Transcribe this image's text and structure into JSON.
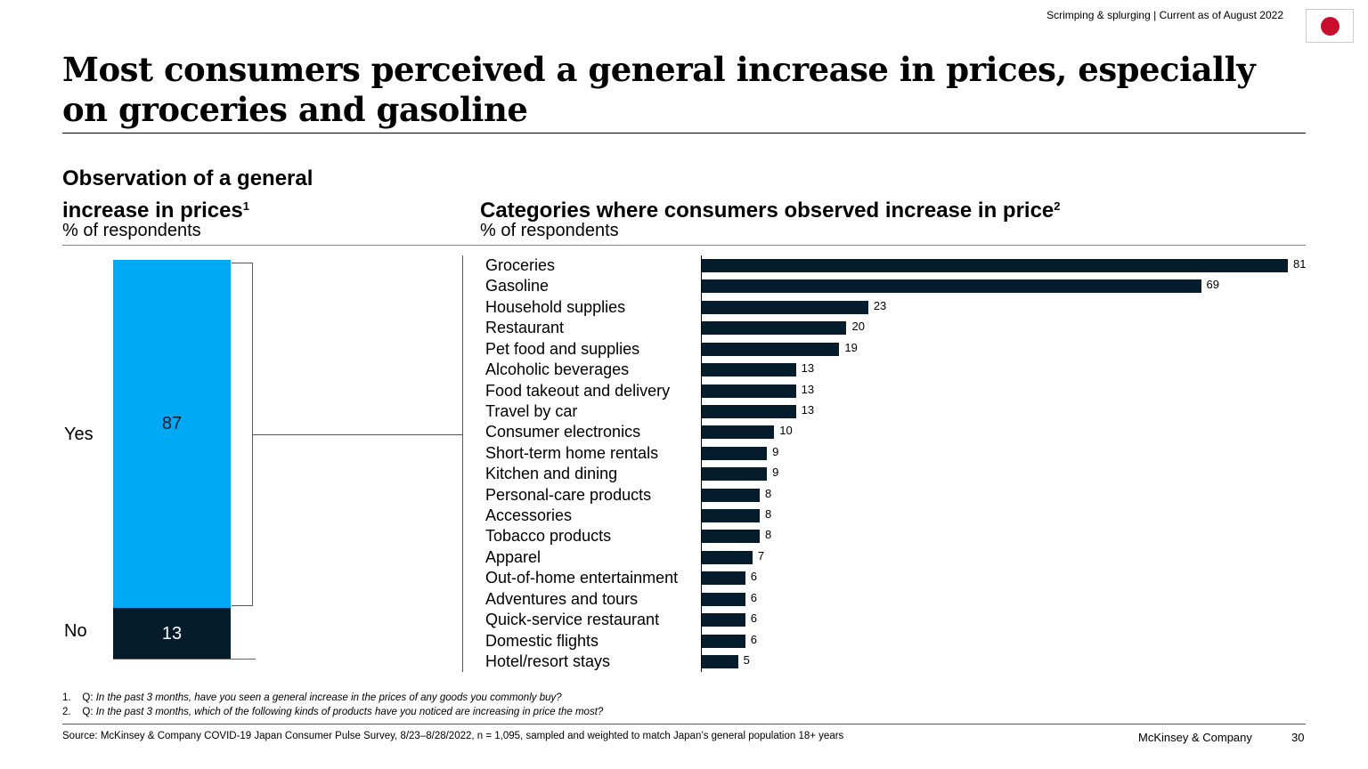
{
  "header": {
    "tracker": "Scrimping & splurging | Current as of August 2022",
    "flag_icon": "japan-flag-icon"
  },
  "title": "Most consumers perceived a general increase in prices, especially on groceries and gasoline",
  "chart_data": [
    {
      "type": "bar",
      "stacked": true,
      "title": "Observation of a general increase in prices",
      "title_note": "1",
      "ylabel": "% of respondents",
      "categories": [
        "Yes",
        "No"
      ],
      "values": [
        87,
        13
      ],
      "colors": {
        "Yes": "#00a9f4",
        "No": "#051c2c"
      }
    },
    {
      "type": "bar",
      "orientation": "horizontal",
      "title": "Categories where consumers observed increase in price",
      "title_note": "2",
      "ylabel": "% of respondents",
      "categories": [
        "Groceries",
        "Gasoline",
        "Household supplies",
        "Restaurant",
        "Pet food and supplies",
        "Alcoholic beverages",
        "Food takeout and delivery",
        "Travel by car",
        "Consumer electronics",
        "Short-term home rentals",
        "Kitchen and dining",
        "Personal-care products",
        "Accessories",
        "Tobacco products",
        "Apparel",
        "Out-of-home entertainment",
        "Adventures and tours",
        "Quick-service restaurant",
        "Domestic flights",
        "Hotel/resort stays"
      ],
      "values": [
        81,
        69,
        23,
        20,
        19,
        13,
        13,
        13,
        10,
        9,
        9,
        8,
        8,
        8,
        7,
        6,
        6,
        6,
        6,
        5
      ],
      "color": "#051c2c"
    }
  ],
  "footnotes": [
    {
      "num": "1.",
      "q": "Q:",
      "text": "In the past 3 months, have you seen a general increase in the prices of any goods you commonly buy?"
    },
    {
      "num": "2.",
      "q": "Q:",
      "text": "In the past 3 months, which of the following kinds of products have you noticed are increasing in price the most?"
    }
  ],
  "source": "Source: McKinsey & Company COVID-19 Japan Consumer Pulse Survey, 8/23–8/28/2022, n = 1,095, sampled and weighted to match Japan’s general population 18+ years",
  "footer": {
    "brand": "McKinsey & Company",
    "page": "30"
  }
}
